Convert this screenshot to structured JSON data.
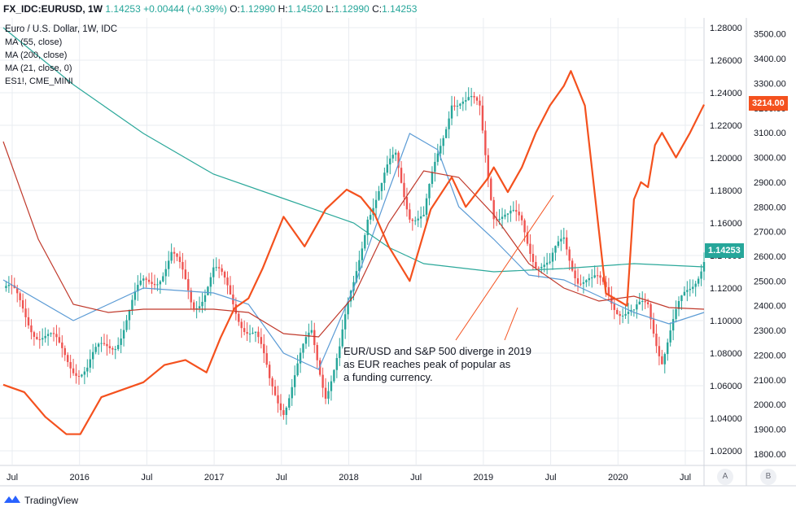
{
  "header": {
    "symbol": "FX_IDC:EURUSD, 1W",
    "last": "1.14253",
    "change": "+0.00444 (+0.39%)",
    "open_label": "O:",
    "open": "1.12990",
    "high_label": "H:",
    "high": "1.14520",
    "low_label": "L:",
    "low": "1.12990",
    "close_label": "C:",
    "close": "1.14253"
  },
  "legend": {
    "title": "Euro / U.S. Dollar, 1W, IDC",
    "items": [
      "MA (55, close)",
      "MA (200, close)",
      "MA (21, close, 0)",
      "ES1!, CME_MINI"
    ]
  },
  "annotation": {
    "lines": [
      "EUR/USD and S&P 500 diverge in 2019",
      "as EUR reaches peak of popular as",
      "a funding currency."
    ]
  },
  "footer": {
    "brand": "TradingView"
  },
  "axis_buttons": {
    "left": "A",
    "right": "B"
  },
  "colors": {
    "up": "#26a69a",
    "down": "#ef5350",
    "ma55": "#5b9bd5",
    "ma200": "#2ba89a",
    "ma21": "#c0392b",
    "es": "#f4511e",
    "grid": "#e9ecf1"
  },
  "chart_data": {
    "type": "line",
    "title": "Euro / U.S. Dollar, 1W, IDC",
    "x_ticks": [
      "Jul",
      "2016",
      "Jul",
      "2017",
      "Jul",
      "2018",
      "Jul",
      "2019",
      "Jul",
      "2020",
      "Jul"
    ],
    "eurusd_axis": {
      "ticks": [
        "1.28000",
        "1.26000",
        "1.24000",
        "1.22000",
        "1.20000",
        "1.18000",
        "1.16000",
        "1.14000",
        "1.12000",
        "1.10000",
        "1.08000",
        "1.06000",
        "1.04000",
        "1.02000"
      ],
      "range": [
        1.012,
        1.286
      ]
    },
    "es_axis": {
      "ticks": [
        "3500.00",
        "3400.00",
        "3300.00",
        "3200.00",
        "3100.00",
        "3000.00",
        "2900.00",
        "2800.00",
        "2700.00",
        "2600.00",
        "2500.00",
        "2400.00",
        "2300.00",
        "2200.00",
        "2100.00",
        "2000.00",
        "1900.00",
        "1800.00"
      ],
      "range": [
        1760,
        3565
      ]
    },
    "last_price_label": "1.14253",
    "es_last_label": "3214.00",
    "series": [
      {
        "name": "EUR/USD weekly close",
        "t": [
          0,
          0.04,
          0.08,
          0.12,
          0.16,
          0.2,
          0.24,
          0.27,
          0.3,
          0.33,
          0.36,
          0.38,
          0.4,
          0.42,
          0.44,
          0.46,
          0.48,
          0.5,
          0.52,
          0.54,
          0.56,
          0.58,
          0.6,
          0.62,
          0.64,
          0.66,
          0.68,
          0.7,
          0.72,
          0.74,
          0.76,
          0.78,
          0.8,
          0.82,
          0.84,
          0.86,
          0.88,
          0.9,
          0.92,
          0.94,
          0.96,
          0.98,
          1.0
        ],
        "values": [
          1.12,
          1.1,
          1.08,
          1.07,
          1.09,
          1.12,
          1.14,
          1.11,
          1.13,
          1.11,
          1.09,
          1.06,
          1.05,
          1.07,
          1.09,
          1.06,
          1.08,
          1.12,
          1.17,
          1.18,
          1.2,
          1.17,
          1.16,
          1.2,
          1.24,
          1.23,
          1.23,
          1.17,
          1.16,
          1.16,
          1.14,
          1.13,
          1.15,
          1.13,
          1.12,
          1.12,
          1.11,
          1.1,
          1.11,
          1.08,
          1.1,
          1.12,
          1.14253
        ]
      },
      {
        "name": "MA (55, close)",
        "t": [
          0,
          0.1,
          0.2,
          0.3,
          0.35,
          0.4,
          0.45,
          0.5,
          0.55,
          0.58,
          0.62,
          0.65,
          0.7,
          0.75,
          0.8,
          0.85,
          0.9,
          0.95,
          1.0
        ],
        "values": [
          1.125,
          1.1,
          1.12,
          1.117,
          1.11,
          1.08,
          1.07,
          1.12,
          1.18,
          1.215,
          1.205,
          1.17,
          1.15,
          1.128,
          1.125,
          1.115,
          1.105,
          1.098,
          1.105
        ]
      },
      {
        "name": "MA (200, close)",
        "t": [
          0,
          0.1,
          0.2,
          0.3,
          0.4,
          0.5,
          0.55,
          0.6,
          0.7,
          0.8,
          0.9,
          1.0
        ],
        "values": [
          1.28,
          1.245,
          1.215,
          1.19,
          1.175,
          1.16,
          1.145,
          1.135,
          1.13,
          1.132,
          1.135,
          1.133
        ]
      },
      {
        "name": "MA (21, close, 0)",
        "t": [
          0,
          0.05,
          0.1,
          0.15,
          0.2,
          0.3,
          0.35,
          0.4,
          0.45,
          0.5,
          0.55,
          0.6,
          0.65,
          0.7,
          0.75,
          0.8,
          0.85,
          0.9,
          0.95,
          1.0
        ],
        "values": [
          1.21,
          1.15,
          1.11,
          1.105,
          1.107,
          1.107,
          1.105,
          1.092,
          1.09,
          1.115,
          1.16,
          1.192,
          1.188,
          1.165,
          1.135,
          1.12,
          1.112,
          1.115,
          1.108,
          1.107
        ]
      },
      {
        "name": "ES1!, CME_MINI",
        "t": [
          0,
          0.03,
          0.06,
          0.09,
          0.11,
          0.14,
          0.17,
          0.2,
          0.23,
          0.26,
          0.29,
          0.31,
          0.33,
          0.35,
          0.37,
          0.4,
          0.43,
          0.46,
          0.49,
          0.51,
          0.53,
          0.55,
          0.58,
          0.61,
          0.64,
          0.66,
          0.69,
          0.7,
          0.72,
          0.74,
          0.76,
          0.78,
          0.8,
          0.81,
          0.83,
          0.86,
          0.89,
          0.9,
          0.91,
          0.92,
          0.93,
          0.94,
          0.96,
          0.98,
          1.0
        ],
        "values": [
          2080,
          2050,
          1950,
          1880,
          1880,
          2030,
          2060,
          2090,
          2160,
          2180,
          2130,
          2270,
          2390,
          2430,
          2550,
          2760,
          2640,
          2790,
          2870,
          2840,
          2770,
          2640,
          2500,
          2790,
          2920,
          2800,
          2910,
          2960,
          2860,
          2960,
          3100,
          3210,
          3290,
          3350,
          3210,
          2450,
          2400,
          2830,
          2900,
          2880,
          3050,
          3100,
          3000,
          3100,
          3214
        ]
      }
    ]
  }
}
